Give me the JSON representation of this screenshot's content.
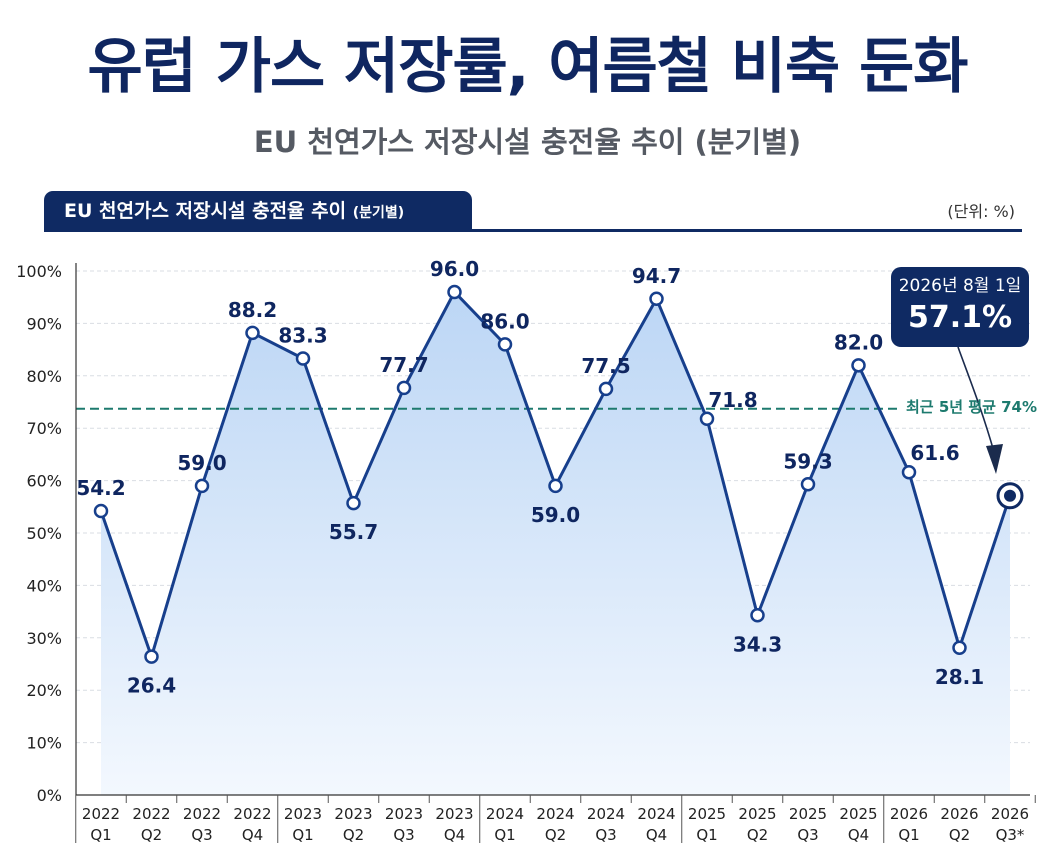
{
  "header": {
    "title": "유럽 가스 저장률, 여름철 비축 둔화",
    "subtitle": "EU 천연가스 저장시설 충전율 추이 (분기별)"
  },
  "panel": {
    "tab_main": "EU 천연가스 저장시설 충전율 추이",
    "tab_small": "(분기별)",
    "unit": "(단위: %)"
  },
  "callout": {
    "date": "2026년 8월 1일",
    "value": "57.1%"
  },
  "average": {
    "label": "최근 5년 평균 74%",
    "value": 73.7
  },
  "colors": {
    "line": "#173f8c",
    "fill_top": "#bcd6f5",
    "fill_bottom": "#f3f8fe",
    "avg_line": "#1d7a6e",
    "navy": "#0f2a63"
  },
  "chart_data": {
    "type": "area",
    "title": "EU 천연가스 저장시설 충전율 추이",
    "ylim": [
      0,
      100
    ],
    "yticks": [
      "0%",
      "10%",
      "20%",
      "30%",
      "40%",
      "50%",
      "60%",
      "70%",
      "80%",
      "90%",
      "100%"
    ],
    "grid": true,
    "categories": [
      {
        "year": "2022",
        "q": "Q1"
      },
      {
        "year": "2022",
        "q": "Q2"
      },
      {
        "year": "2022",
        "q": "Q3"
      },
      {
        "year": "2022",
        "q": "Q4"
      },
      {
        "year": "2023",
        "q": "Q1"
      },
      {
        "year": "2023",
        "q": "Q2"
      },
      {
        "year": "2023",
        "q": "Q3"
      },
      {
        "year": "2023",
        "q": "Q4"
      },
      {
        "year": "2024",
        "q": "Q1"
      },
      {
        "year": "2024",
        "q": "Q2"
      },
      {
        "year": "2024",
        "q": "Q3"
      },
      {
        "year": "2024",
        "q": "Q4"
      },
      {
        "year": "2025",
        "q": "Q1"
      },
      {
        "year": "2025",
        "q": "Q2"
      },
      {
        "year": "2025",
        "q": "Q3"
      },
      {
        "year": "2025",
        "q": "Q4"
      },
      {
        "year": "2026",
        "q": "Q1"
      },
      {
        "year": "2026",
        "q": "Q2"
      },
      {
        "year": "2026",
        "q": "Q3*"
      }
    ],
    "values": [
      54.2,
      26.4,
      59.0,
      88.2,
      83.3,
      55.7,
      77.7,
      96.0,
      86.0,
      59.0,
      77.5,
      94.7,
      71.8,
      34.3,
      59.3,
      82.0,
      61.6,
      28.1,
      57.1
    ],
    "labels": [
      "54.2",
      "26.4",
      "59.0",
      "88.2",
      "83.3",
      "55.7",
      "77.7",
      "96.0",
      "86.0",
      "59.0",
      "77.5",
      "94.7",
      "71.8",
      "34.3",
      "59.3",
      "82.0",
      "61.6",
      "28.1",
      ""
    ],
    "label_pos": [
      "above",
      "below",
      "above",
      "above",
      "above",
      "below",
      "above",
      "above",
      "above",
      "below",
      "above",
      "above",
      "right",
      "below",
      "above",
      "above",
      "right",
      "below",
      "none"
    ]
  }
}
